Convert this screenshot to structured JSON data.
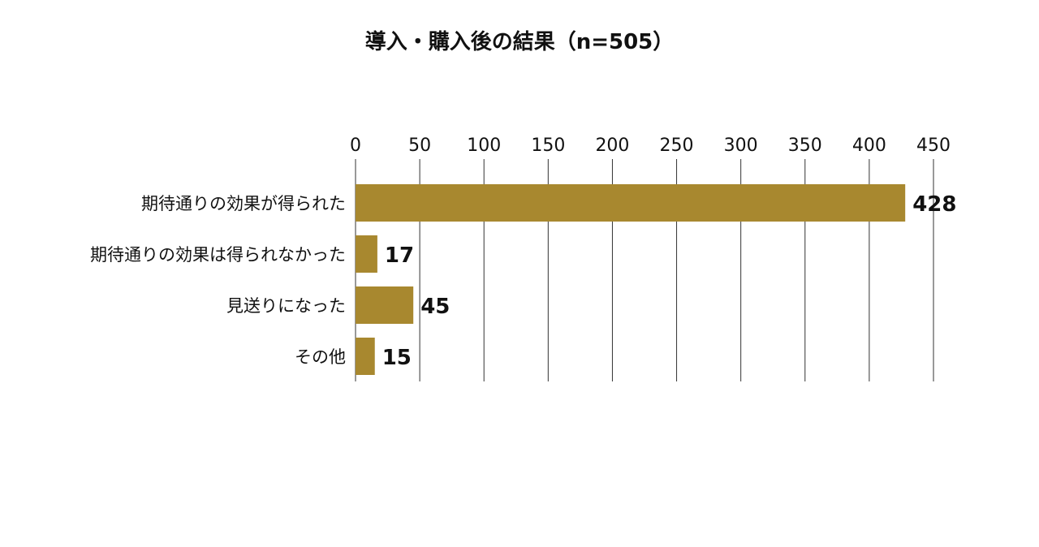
{
  "chart_data": {
    "type": "bar",
    "orientation": "horizontal",
    "title": "導入・購入後の結果（n=505）",
    "categories": [
      "期待通りの効果が得られた",
      "期待通りの効果は得られなかった",
      "見送りになった",
      "その他"
    ],
    "values": [
      428,
      17,
      45,
      15
    ],
    "xlim": [
      0,
      450
    ],
    "xticks": [
      0,
      50,
      100,
      150,
      200,
      250,
      300,
      350,
      400,
      450
    ],
    "axis_position": "top",
    "grid": true,
    "legend": "none",
    "bar_color": "#A8882F",
    "data_labels": true
  }
}
